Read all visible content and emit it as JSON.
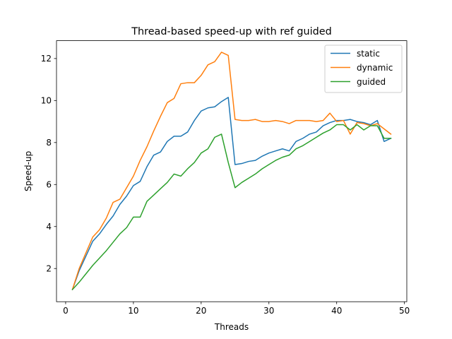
{
  "chart_data": {
    "type": "line",
    "title": "Thread-based speed-up with ref guided",
    "xlabel": "Threads",
    "ylabel": "Speed-up",
    "xlim": [
      -1.35,
      50.35
    ],
    "ylim": [
      0.42,
      12.85
    ],
    "xticks": [
      0,
      10,
      20,
      30,
      40,
      50
    ],
    "yticks": [
      2,
      4,
      6,
      8,
      10,
      12
    ],
    "grid": false,
    "legend_position": "top-right",
    "x": [
      1,
      2,
      3,
      4,
      5,
      6,
      7,
      8,
      9,
      10,
      11,
      12,
      13,
      14,
      15,
      16,
      17,
      18,
      19,
      20,
      21,
      22,
      23,
      24,
      25,
      26,
      27,
      28,
      29,
      30,
      31,
      32,
      33,
      34,
      35,
      36,
      37,
      38,
      39,
      40,
      41,
      42,
      43,
      44,
      45,
      46,
      47,
      48
    ],
    "series": [
      {
        "name": "static",
        "color": "#1f77b4",
        "values": [
          1.0,
          1.9,
          2.6,
          3.3,
          3.65,
          4.1,
          4.5,
          5.05,
          5.45,
          5.95,
          6.15,
          6.85,
          7.4,
          7.55,
          8.05,
          8.3,
          8.3,
          8.5,
          9.05,
          9.5,
          9.65,
          9.7,
          9.95,
          10.15,
          6.95,
          7.0,
          7.1,
          7.15,
          7.35,
          7.5,
          7.6,
          7.7,
          7.6,
          8.05,
          8.2,
          8.4,
          8.5,
          8.8,
          8.95,
          9.05,
          9.05,
          9.1,
          9.0,
          8.95,
          8.85,
          9.05,
          8.05,
          8.2
        ]
      },
      {
        "name": "dynamic",
        "color": "#ff7f0e",
        "values": [
          1.0,
          2.0,
          2.75,
          3.5,
          3.85,
          4.4,
          5.15,
          5.3,
          5.85,
          6.4,
          7.15,
          7.8,
          8.55,
          9.25,
          9.9,
          10.1,
          10.8,
          10.85,
          10.85,
          11.2,
          11.7,
          11.85,
          12.3,
          12.15,
          9.1,
          9.05,
          9.05,
          9.1,
          9.0,
          9.0,
          9.05,
          9.0,
          8.9,
          9.05,
          9.05,
          9.05,
          9.0,
          9.05,
          9.4,
          9.0,
          9.05,
          8.4,
          8.95,
          8.9,
          8.8,
          8.9,
          8.65,
          8.4
        ]
      },
      {
        "name": "guided",
        "color": "#2ca02c",
        "values": [
          1.0,
          1.35,
          1.75,
          2.15,
          2.5,
          2.85,
          3.25,
          3.65,
          3.95,
          4.45,
          4.45,
          5.2,
          5.5,
          5.8,
          6.1,
          6.5,
          6.4,
          6.75,
          7.05,
          7.5,
          7.7,
          8.25,
          8.4,
          7.05,
          5.85,
          6.1,
          6.3,
          6.5,
          6.75,
          6.95,
          7.15,
          7.3,
          7.4,
          7.7,
          7.85,
          8.05,
          8.25,
          8.45,
          8.6,
          8.85,
          8.85,
          8.6,
          8.85,
          8.6,
          8.8,
          8.8,
          8.2,
          8.2
        ]
      }
    ]
  }
}
